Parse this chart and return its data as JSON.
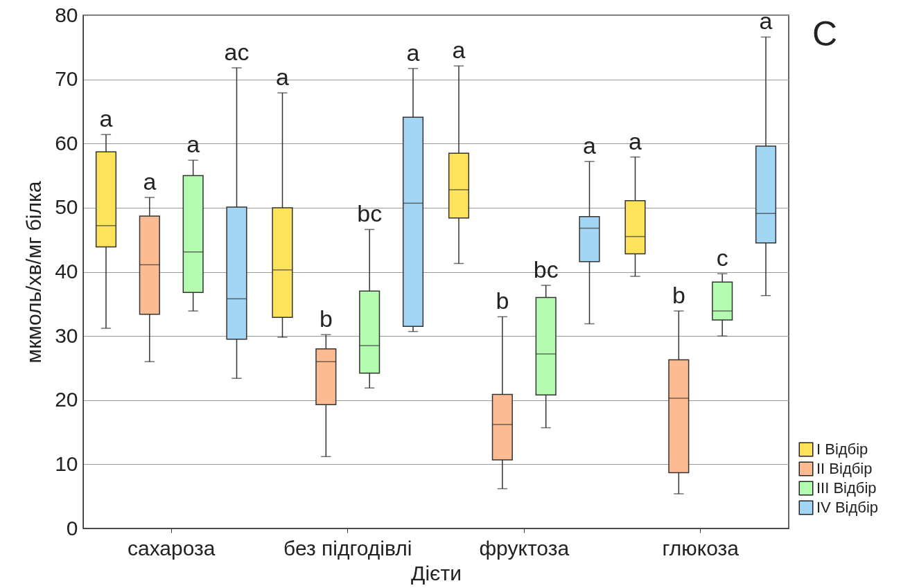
{
  "chart_data": {
    "type": "box",
    "xlabel": "Дієти",
    "ylabel": "мкмоль/хв/мг білка",
    "categories": [
      "сахароза",
      "без підгодівлі",
      "фруктоза",
      "глюкоза"
    ],
    "ylim": [
      0,
      80
    ],
    "yticks": [
      0,
      10,
      20,
      30,
      40,
      50,
      60,
      70,
      80
    ],
    "grid": "y",
    "legend": "bottom right",
    "annotations": [
      "C"
    ],
    "series": [
      {
        "name": "I Відбір",
        "color": "#fde35c",
        "boxes": [
          {
            "low": 31.2,
            "q1": 43.9,
            "median": 47.2,
            "q3": 58.7,
            "high": 61.4
          },
          {
            "low": 29.8,
            "q1": 32.9,
            "median": 40.3,
            "q3": 50.0,
            "high": 67.9
          },
          {
            "low": 41.3,
            "q1": 48.4,
            "median": 52.8,
            "q3": 58.5,
            "high": 72.1
          },
          {
            "low": 39.3,
            "q1": 42.8,
            "median": 45.5,
            "q3": 51.1,
            "high": 57.9
          }
        ],
        "value_labels": [
          "a",
          "a",
          "a",
          "a"
        ]
      },
      {
        "name": "II Відбір",
        "color": "#fdbb93",
        "boxes": [
          {
            "low": 26.0,
            "q1": 33.4,
            "median": 41.1,
            "q3": 48.7,
            "high": 51.6
          },
          {
            "low": 11.2,
            "q1": 19.3,
            "median": 26.0,
            "q3": 28.0,
            "high": 30.2
          },
          {
            "low": 6.2,
            "q1": 10.7,
            "median": 16.2,
            "q3": 20.9,
            "high": 33.0
          },
          {
            "low": 5.4,
            "q1": 8.7,
            "median": 20.3,
            "q3": 26.3,
            "high": 33.9
          }
        ],
        "value_labels": [
          "a",
          "b",
          "b",
          "b"
        ]
      },
      {
        "name": "III Відбір",
        "color": "#b3fbae",
        "boxes": [
          {
            "low": 33.9,
            "q1": 36.8,
            "median": 43.1,
            "q3": 55.0,
            "high": 57.4
          },
          {
            "low": 21.9,
            "q1": 24.2,
            "median": 28.5,
            "q3": 37.0,
            "high": 46.6
          },
          {
            "low": 15.7,
            "q1": 20.8,
            "median": 27.2,
            "q3": 36.0,
            "high": 37.9
          },
          {
            "low": 30.0,
            "q1": 32.5,
            "median": 33.9,
            "q3": 38.4,
            "high": 39.7
          }
        ],
        "value_labels": [
          "a",
          "bc",
          "bc",
          "c"
        ]
      },
      {
        "name": "IV Відбір",
        "color": "#a2d6f4",
        "boxes": [
          {
            "low": 23.4,
            "q1": 29.5,
            "median": 35.8,
            "q3": 50.1,
            "high": 71.8
          },
          {
            "low": 30.7,
            "q1": 31.5,
            "median": 50.7,
            "q3": 64.1,
            "high": 71.7
          },
          {
            "low": 31.9,
            "q1": 41.6,
            "median": 46.8,
            "q3": 48.6,
            "high": 57.2
          },
          {
            "low": 36.3,
            "q1": 44.5,
            "median": 49.1,
            "q3": 59.6,
            "high": 76.6
          }
        ],
        "value_labels": [
          "ac",
          "a",
          "a",
          "a"
        ]
      }
    ]
  }
}
